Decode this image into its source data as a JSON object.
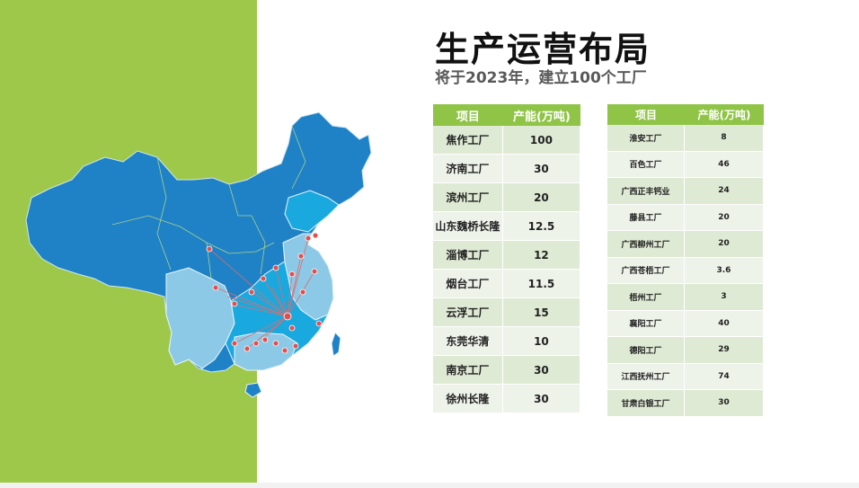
{
  "title": "生产运营布局",
  "subtitle": "将于2023年，建立100个工厂",
  "colors": {
    "accent_green": "#9ec84a",
    "header_green": "#8fc447",
    "map_dark": "#1f82c6",
    "map_mid": "#1aa9df",
    "map_light": "#8cc9e6"
  },
  "table_left": {
    "headers": [
      "项目",
      "产能(万吨)"
    ],
    "rows": [
      {
        "name": "焦作工厂",
        "value": "100"
      },
      {
        "name": "济南工厂",
        "value": "30"
      },
      {
        "name": "滨州工厂",
        "value": "20"
      },
      {
        "name": "山东魏桥长隆",
        "value": "12.5"
      },
      {
        "name": "淄博工厂",
        "value": "12"
      },
      {
        "name": "烟台工厂",
        "value": "11.5"
      },
      {
        "name": "云浮工厂",
        "value": "15"
      },
      {
        "name": "东莞华清",
        "value": "10"
      },
      {
        "name": "南京工厂",
        "value": "30"
      },
      {
        "name": "徐州长隆",
        "value": "30"
      }
    ]
  },
  "table_right": {
    "headers": [
      "项目",
      "产能(万吨)"
    ],
    "rows": [
      {
        "name": "淮安工厂",
        "value": "8"
      },
      {
        "name": "百色工厂",
        "value": "46"
      },
      {
        "name": "广西正丰钙业",
        "value": "24"
      },
      {
        "name": "藤县工厂",
        "value": "20"
      },
      {
        "name": "广西柳州工厂",
        "value": "20"
      },
      {
        "name": "广西苍梧工厂",
        "value": "3.6"
      },
      {
        "name": "梧州工厂",
        "value": "3"
      },
      {
        "name": "襄阳工厂",
        "value": "40"
      },
      {
        "name": "德阳工厂",
        "value": "29"
      },
      {
        "name": "江西抚州工厂",
        "value": "74"
      },
      {
        "name": "甘肃白银工厂",
        "value": "30"
      }
    ]
  }
}
